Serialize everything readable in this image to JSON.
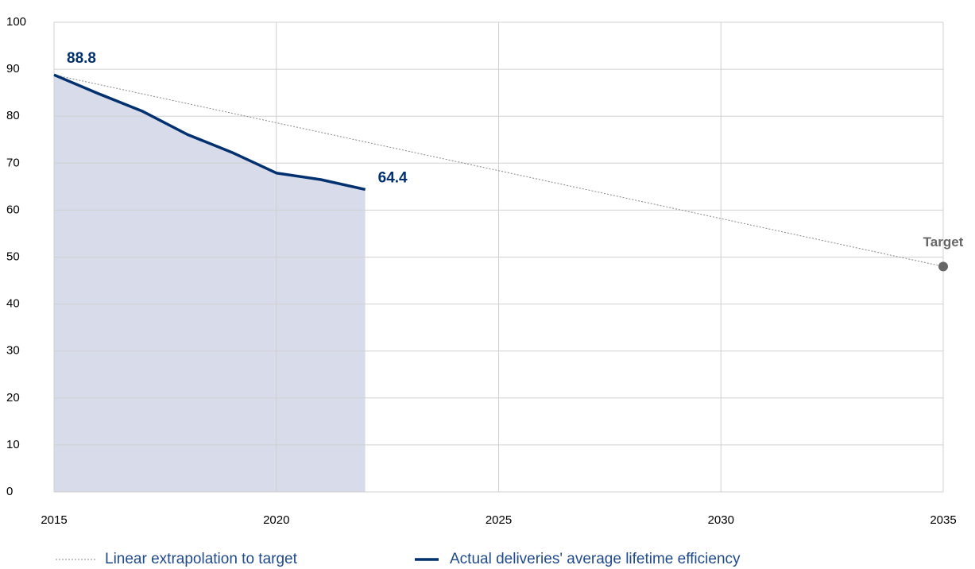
{
  "chart_data": {
    "type": "line",
    "series": [
      {
        "name": "Actual deliveries' average lifetime efficiency",
        "color": "#00306e",
        "fill": "#d8dcea",
        "x": [
          2015,
          2016,
          2017,
          2018,
          2019,
          2020,
          2021,
          2022
        ],
        "values": [
          88.8,
          84.8,
          81,
          76.1,
          72.3,
          67.9,
          66.5,
          64.4
        ]
      },
      {
        "name": "Linear extrapolation to target",
        "color": "#888888",
        "dashed": true,
        "x": [
          2015,
          2035
        ],
        "values": [
          88.8,
          48
        ]
      }
    ],
    "target_label": "Target",
    "target_color": "#666666",
    "xlim": [
      2015,
      2035
    ],
    "xticks": [
      2015,
      2020,
      2025,
      2030,
      2035
    ],
    "ylim": [
      0,
      100
    ],
    "yticks": [
      0,
      10,
      20,
      30,
      40,
      50,
      60,
      70,
      80,
      90,
      100
    ],
    "grid": true
  }
}
